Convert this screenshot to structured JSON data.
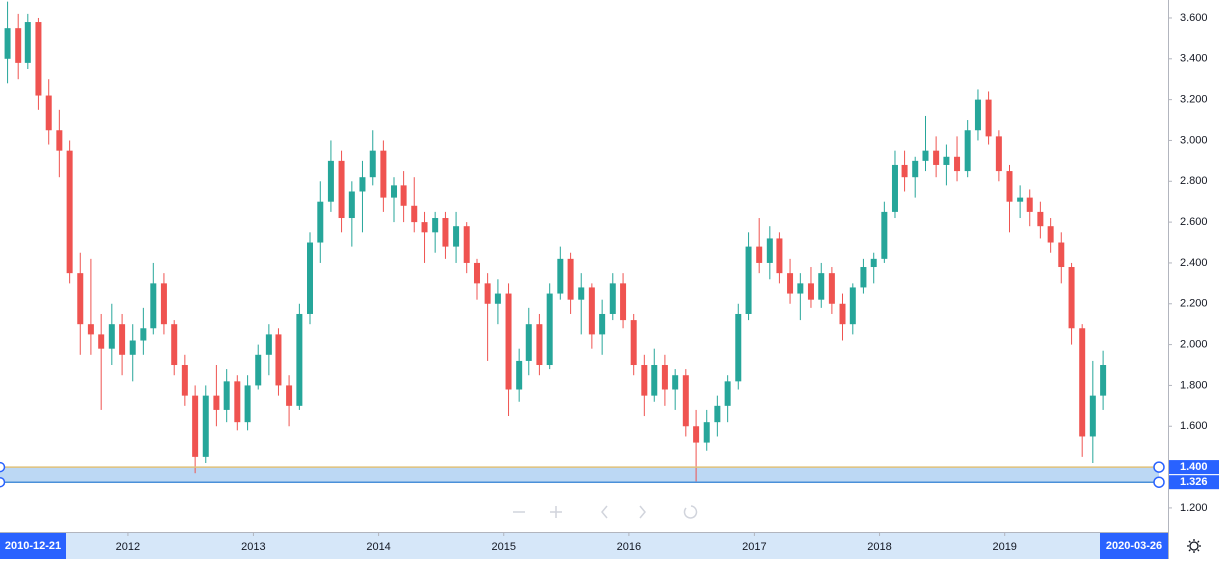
{
  "chart_data": {
    "type": "candlestick",
    "x": [
      "2011-01",
      "2011-02",
      "2011-03",
      "2011-04",
      "2011-05",
      "2011-06",
      "2011-07",
      "2011-08",
      "2011-09",
      "2011-10",
      "2011-11",
      "2011-12",
      "2012-01",
      "2012-02",
      "2012-03",
      "2012-04",
      "2012-05",
      "2012-06",
      "2012-07",
      "2012-08",
      "2012-09",
      "2012-10",
      "2012-11",
      "2012-12",
      "2013-01",
      "2013-02",
      "2013-03",
      "2013-04",
      "2013-05",
      "2013-06",
      "2013-07",
      "2013-08",
      "2013-09",
      "2013-10",
      "2013-11",
      "2013-12",
      "2014-01",
      "2014-02",
      "2014-03",
      "2014-04",
      "2014-05",
      "2014-06",
      "2014-07",
      "2014-08",
      "2014-09",
      "2014-10",
      "2014-11",
      "2014-12",
      "2015-01",
      "2015-02",
      "2015-03",
      "2015-04",
      "2015-05",
      "2015-06",
      "2015-07",
      "2015-08",
      "2015-09",
      "2015-10",
      "2015-11",
      "2015-12",
      "2016-01",
      "2016-02",
      "2016-03",
      "2016-04",
      "2016-05",
      "2016-06",
      "2016-07",
      "2016-08",
      "2016-09",
      "2016-10",
      "2016-11",
      "2016-12",
      "2017-01",
      "2017-02",
      "2017-03",
      "2017-04",
      "2017-05",
      "2017-06",
      "2017-07",
      "2017-08",
      "2017-09",
      "2017-10",
      "2017-11",
      "2017-12",
      "2018-01",
      "2018-02",
      "2018-03",
      "2018-04",
      "2018-05",
      "2018-06",
      "2018-07",
      "2018-08",
      "2018-09",
      "2018-10",
      "2018-11",
      "2018-12",
      "2019-01",
      "2019-02",
      "2019-03",
      "2019-04",
      "2019-05",
      "2019-06",
      "2019-07",
      "2019-08",
      "2019-09",
      "2019-10"
    ],
    "open": [
      3.4,
      3.55,
      3.38,
      3.58,
      3.22,
      3.05,
      2.95,
      2.35,
      2.1,
      2.05,
      1.98,
      2.1,
      1.95,
      2.02,
      2.08,
      2.3,
      2.1,
      1.9,
      1.75,
      1.45,
      1.75,
      1.68,
      1.82,
      1.62,
      1.8,
      1.95,
      2.05,
      1.8,
      1.7,
      2.15,
      2.5,
      2.7,
      2.9,
      2.62,
      2.75,
      2.82,
      2.95,
      2.72,
      2.78,
      2.68,
      2.6,
      2.55,
      2.62,
      2.48,
      2.58,
      2.4,
      2.3,
      2.2,
      2.25,
      1.78,
      1.92,
      2.1,
      1.9,
      2.25,
      2.42,
      2.22,
      2.28,
      2.05,
      2.15,
      2.3,
      2.12,
      1.9,
      1.75,
      1.9,
      1.78,
      1.85,
      1.6,
      1.52,
      1.62,
      1.7,
      1.82,
      2.15,
      2.48,
      2.4,
      2.52,
      2.35,
      2.25,
      2.3,
      2.22,
      2.35,
      2.2,
      2.1,
      2.28,
      2.38,
      2.42,
      2.65,
      2.88,
      2.82,
      2.9,
      2.95,
      2.88,
      2.92,
      2.85,
      3.05,
      3.2,
      3.02,
      2.85,
      2.7,
      2.72,
      2.65,
      2.58,
      2.5,
      2.38,
      2.08,
      1.55,
      1.75
    ],
    "high": [
      3.68,
      3.62,
      3.62,
      3.6,
      3.3,
      3.15,
      3.0,
      2.45,
      2.42,
      2.15,
      2.2,
      2.15,
      2.1,
      2.18,
      2.4,
      2.35,
      2.12,
      1.95,
      1.8,
      1.8,
      1.9,
      1.88,
      1.85,
      1.85,
      2.0,
      2.1,
      2.08,
      1.85,
      2.2,
      2.55,
      2.8,
      3.0,
      2.95,
      2.8,
      2.9,
      3.05,
      3.0,
      2.82,
      2.85,
      2.82,
      2.65,
      2.65,
      2.65,
      2.65,
      2.6,
      2.42,
      2.35,
      2.32,
      2.3,
      1.98,
      2.18,
      2.15,
      2.3,
      2.48,
      2.45,
      2.35,
      2.3,
      2.22,
      2.35,
      2.35,
      2.15,
      1.95,
      1.98,
      1.95,
      1.88,
      1.88,
      1.68,
      1.68,
      1.75,
      1.85,
      2.2,
      2.55,
      2.62,
      2.58,
      2.55,
      2.42,
      2.35,
      2.38,
      2.4,
      2.38,
      2.25,
      2.3,
      2.42,
      2.45,
      2.7,
      2.95,
      2.95,
      2.92,
      3.12,
      3.02,
      2.98,
      3.02,
      3.1,
      3.25,
      3.24,
      3.05,
      2.88,
      2.78,
      2.76,
      2.7,
      2.62,
      2.55,
      2.4,
      2.1,
      1.92,
      1.97
    ],
    "low": [
      3.28,
      3.3,
      3.35,
      3.15,
      2.98,
      2.82,
      2.3,
      1.95,
      1.95,
      1.68,
      1.9,
      1.85,
      1.82,
      1.95,
      2.05,
      2.05,
      1.85,
      1.7,
      1.37,
      1.42,
      1.6,
      1.62,
      1.58,
      1.58,
      1.78,
      1.85,
      1.75,
      1.6,
      1.68,
      2.1,
      2.4,
      2.65,
      2.55,
      2.48,
      2.55,
      2.78,
      2.65,
      2.6,
      2.6,
      2.55,
      2.4,
      2.45,
      2.42,
      2.4,
      2.35,
      2.22,
      1.92,
      2.1,
      1.65,
      1.72,
      1.85,
      1.85,
      1.88,
      2.22,
      2.15,
      2.05,
      1.98,
      1.95,
      2.12,
      2.08,
      1.85,
      1.65,
      1.72,
      1.7,
      1.68,
      1.55,
      1.33,
      1.48,
      1.55,
      1.62,
      1.78,
      2.12,
      2.35,
      2.32,
      2.3,
      2.2,
      2.12,
      2.18,
      2.18,
      2.15,
      2.02,
      2.05,
      2.25,
      2.3,
      2.4,
      2.62,
      2.75,
      2.72,
      2.85,
      2.82,
      2.78,
      2.8,
      2.82,
      3.0,
      2.98,
      2.8,
      2.55,
      2.62,
      2.58,
      2.52,
      2.45,
      2.3,
      2.0,
      1.45,
      1.42,
      1.68
    ],
    "close": [
      3.55,
      3.38,
      3.58,
      3.22,
      3.05,
      2.95,
      2.35,
      2.1,
      2.05,
      1.98,
      2.1,
      1.95,
      2.02,
      2.08,
      2.3,
      2.1,
      1.9,
      1.75,
      1.45,
      1.75,
      1.68,
      1.82,
      1.62,
      1.8,
      1.95,
      2.05,
      1.8,
      1.7,
      2.15,
      2.5,
      2.7,
      2.9,
      2.62,
      2.75,
      2.82,
      2.95,
      2.72,
      2.78,
      2.68,
      2.6,
      2.55,
      2.62,
      2.48,
      2.58,
      2.4,
      2.3,
      2.2,
      2.25,
      1.78,
      1.92,
      2.1,
      1.9,
      2.25,
      2.42,
      2.22,
      2.28,
      2.05,
      2.15,
      2.3,
      2.12,
      1.9,
      1.75,
      1.9,
      1.78,
      1.85,
      1.6,
      1.52,
      1.62,
      1.7,
      1.82,
      2.15,
      2.48,
      2.4,
      2.52,
      2.35,
      2.25,
      2.3,
      2.22,
      2.35,
      2.2,
      2.1,
      2.28,
      2.38,
      2.42,
      2.65,
      2.88,
      2.82,
      2.9,
      2.95,
      2.88,
      2.92,
      2.85,
      3.05,
      3.2,
      3.02,
      2.85,
      2.7,
      2.72,
      2.65,
      2.58,
      2.5,
      2.38,
      2.08,
      1.55,
      1.75,
      1.9
    ],
    "up_color": "#26a69a",
    "down_color": "#ef5350",
    "xlim": [
      "2010-12-21",
      "2020-03-26"
    ],
    "xticks": [
      2012,
      2013,
      2014,
      2015,
      2016,
      2017,
      2018,
      2019
    ],
    "ylim": [
      1.082,
      3.688
    ],
    "yticks": [
      {
        "value": 1.2,
        "label": "1.200"
      },
      {
        "value": 1.4,
        "label": "1.400"
      },
      {
        "value": 1.6,
        "label": "1.600"
      },
      {
        "value": 1.8,
        "label": "1.800"
      },
      {
        "value": 2.0,
        "label": "2.000"
      },
      {
        "value": 2.2,
        "label": "2.200"
      },
      {
        "value": 2.4,
        "label": "2.400"
      },
      {
        "value": 2.6,
        "label": "2.600"
      },
      {
        "value": 2.8,
        "label": "2.800"
      },
      {
        "value": 3.0,
        "label": "3.000"
      },
      {
        "value": 3.2,
        "label": "3.200"
      },
      {
        "value": 3.4,
        "label": "3.400"
      },
      {
        "value": 3.6,
        "label": "3.600"
      }
    ],
    "price_range": [
      {
        "value": 1.4,
        "label": "1.400"
      },
      {
        "value": 1.326,
        "label": "1.326"
      }
    ]
  }
}
